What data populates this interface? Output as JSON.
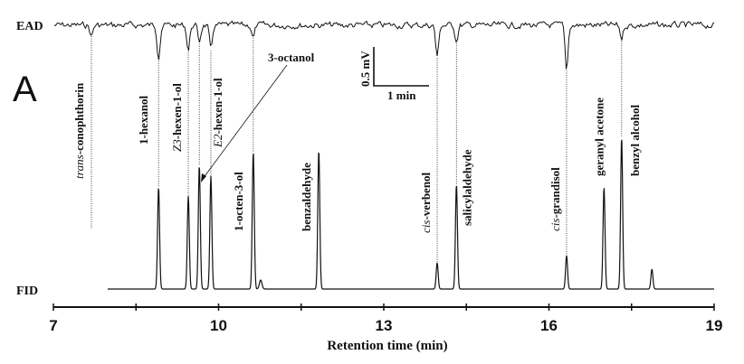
{
  "chart_data": {
    "type": "line",
    "panel_label": "A",
    "xlabel": "Retention time (min)",
    "xlim": [
      7,
      19
    ],
    "x_ticks": [
      7,
      10,
      13,
      16,
      19
    ],
    "minor_tick_step": 1.5,
    "traces": [
      "EAD",
      "FID"
    ],
    "scale_bar": {
      "vertical": "0.5 mV",
      "horizontal": "1 min"
    },
    "peaks": [
      {
        "prefix": "trans",
        "name": "-conophthorin",
        "rt": 7.69,
        "fid": 67,
        "ead_mv": 0.14
      },
      {
        "prefix": "",
        "name": "1-hexanol",
        "rt": 8.91,
        "fid": 113,
        "ead_mv": 0.4
      },
      {
        "prefix": "Z3",
        "name": "-hexen-1-ol",
        "rt": 9.45,
        "fid": 103,
        "ead_mv": 0.32
      },
      {
        "prefix": "",
        "name": "3-octanol",
        "rt": 9.65,
        "fid": 137,
        "ead_mv": 0.21
      },
      {
        "prefix": "E2",
        "name": "-hexen-1-ol",
        "rt": 9.86,
        "fid": 125,
        "ead_mv": 0.33
      },
      {
        "prefix": "",
        "name": "1-octen-3-ol",
        "rt": 10.63,
        "fid": 152,
        "ead_mv": 0.16
      },
      {
        "prefix": "",
        "name": "benzaldehyde",
        "rt": 11.82,
        "fid": 154,
        "ead_mv": 0
      },
      {
        "prefix": "cis",
        "name": "-verbenol",
        "rt": 13.97,
        "fid": 29,
        "ead_mv": 0.42
      },
      {
        "prefix": "",
        "name": "salicylaldehyde",
        "rt": 14.32,
        "fid": 116,
        "ead_mv": 0.2
      },
      {
        "prefix": "cis",
        "name": "-grandisol",
        "rt": 16.32,
        "fid": 37,
        "ead_mv": 0.58
      },
      {
        "prefix": "",
        "name": "geranyl acetone",
        "rt": 17.0,
        "fid": 113,
        "ead_mv": 0
      },
      {
        "prefix": "",
        "name": "benzyl alcohol",
        "rt": 17.32,
        "fid": 168,
        "ead_mv": 0.17
      },
      {
        "prefix": "",
        "name": "",
        "rt": 17.87,
        "fid": 22,
        "ead_mv": 0
      }
    ]
  }
}
